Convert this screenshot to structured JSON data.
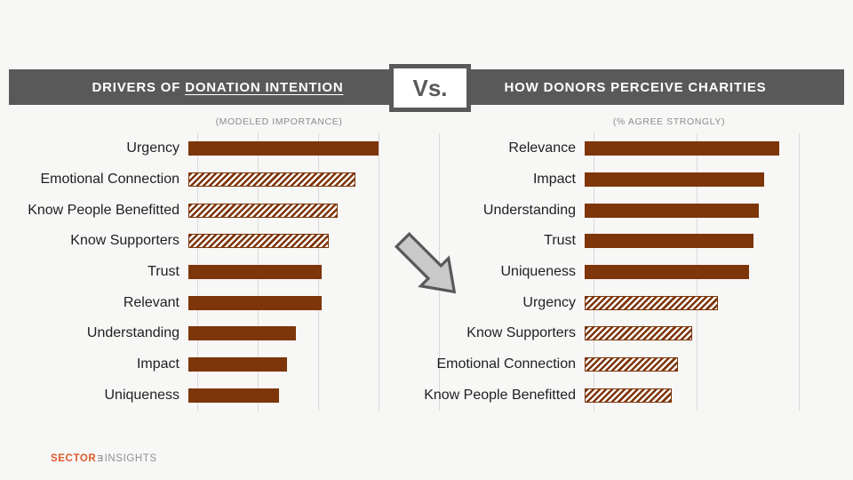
{
  "header": {
    "left_title_prefix": "DRIVERS OF",
    "left_title_underlined": "DONATION INTENTION",
    "right_title": "HOW DONORS PERCEIVE CHARITIES",
    "vs_label": "Vs.",
    "band_color": "#595959"
  },
  "chart_data": [
    {
      "type": "bar",
      "orientation": "horizontal",
      "title": "DRIVERS OF DONATION INTENTION",
      "subtitle": "(MODELED IMPORTANCE)",
      "categories": [
        "Urgency",
        "Emotional Connection",
        "Know People Benefitted",
        "Know Supporters",
        "Trust",
        "Relevant",
        "Understanding",
        "Impact",
        "Uniqueness"
      ],
      "values": [
        78.7,
        69.1,
        61.8,
        58.1,
        55.1,
        55.1,
        44.5,
        40.8,
        37.5
      ],
      "hatched": [
        false,
        true,
        true,
        true,
        false,
        false,
        false,
        false,
        false
      ],
      "bar_color": "#7d3509",
      "xlim": [
        0,
        100
      ],
      "value_scale": "percent of axis width (axis tick labels not shown)",
      "gridlines_pct": [
        0,
        25,
        50,
        75,
        100
      ],
      "gridline_color": "#d9d9d9",
      "legend": "none"
    },
    {
      "type": "bar",
      "orientation": "horizontal",
      "title": "HOW DONORS PERCEIVE CHARITIES",
      "subtitle": "(% AGREE STRONGLY)",
      "categories": [
        "Relevance",
        "Impact",
        "Understanding",
        "Trust",
        "Uniqueness",
        "Urgency",
        "Know Supporters",
        "Emotional Connection",
        "Know People Benefitted"
      ],
      "values": [
        83.6,
        77.1,
        74.8,
        72.5,
        70.6,
        57.3,
        46.2,
        40.1,
        37.4
      ],
      "hatched": [
        false,
        false,
        false,
        false,
        false,
        true,
        true,
        true,
        true
      ],
      "bar_color": "#7d3509",
      "xlim": [
        0,
        100
      ],
      "value_scale": "percent of axis width (axis tick labels not shown)",
      "gridlines_pct": [
        0,
        44.3,
        88.2
      ],
      "gridline_color": "#d9d9d9",
      "legend": "none"
    }
  ],
  "arrow": {
    "direction": "down-right",
    "fill": "#c9c9c9",
    "stroke": "#595959"
  },
  "footer": {
    "logo_sector": "SECTOR",
    "logo_glyph": "Ǝ",
    "logo_insights": "INSIGHTS"
  }
}
